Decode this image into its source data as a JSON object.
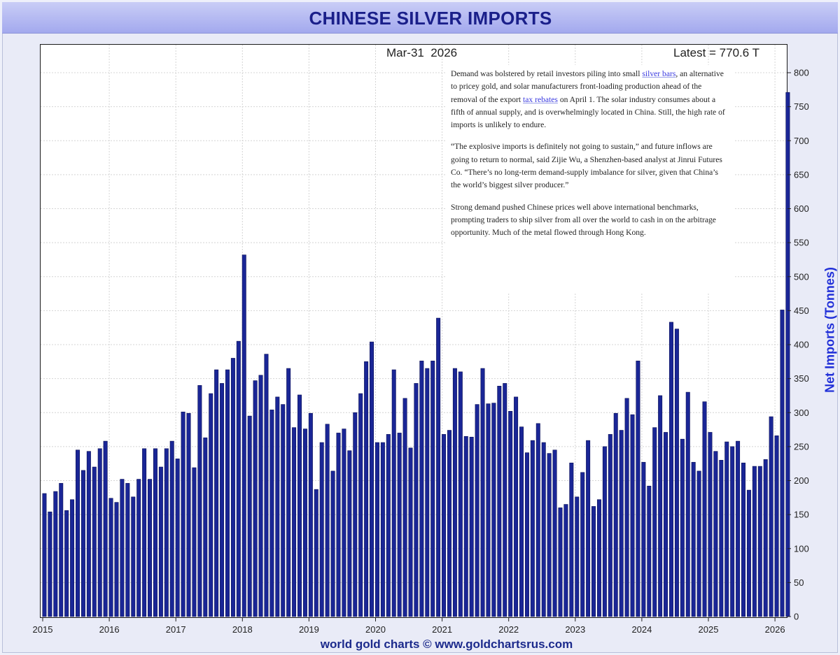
{
  "title": "CHINESE SILVER IMPORTS",
  "date_label": "Mar-31  2026",
  "latest_label": "Latest = 770.6 T",
  "annotation": {
    "p1": {
      "t1": "Demand was bolstered by retail investors piling into small ",
      "link1": "silver bars",
      "t2": ", an alternative to pricey gold, and solar manufacturers front-loading production ahead of the removal of the export ",
      "link2": "tax rebates",
      "t3": " on April 1. The solar industry consumes about a fifth of annual supply, and is overwhelmingly located in China. Still, the high rate of imports is unlikely to endure."
    },
    "p2": "“The explosive imports is definitely not going to sustain,” and future inflows are going to return to normal, said Zijie Wu, a Shenzhen-based analyst at Jinrui Futures Co. “There’s no long-term demand-supply imbalance for silver, given that China’s the world’s biggest silver producer.”",
    "p3": "Strong demand pushed Chinese prices well above international benchmarks, prompting traders to ship silver from all over the world to cash in on the arbitrage opportunity. Much of the metal flowed through Hong Kong."
  },
  "footer": "world gold charts © www.goldchartsrus.com",
  "colors": {
    "bar": "#1a2696",
    "bar_edge": "#0a0f55",
    "grid": "#d4d4d4",
    "title_text": "#1a1f8a",
    "ylabel": "#2130d8"
  },
  "chart_data": {
    "type": "bar",
    "title": "CHINESE SILVER IMPORTS",
    "ylabel": "Net Imports (Tonnes)",
    "xlabel": "",
    "x_start": "2015-01",
    "frequency": "monthly",
    "ylim": [
      0,
      820
    ],
    "yticks": [
      0,
      50,
      100,
      150,
      200,
      250,
      300,
      350,
      400,
      450,
      500,
      550,
      600,
      650,
      700,
      750,
      800
    ],
    "xticks": [
      "2015",
      "2016",
      "2017",
      "2018",
      "2019",
      "2020",
      "2021",
      "2022",
      "2023",
      "2024",
      "2025",
      "2026"
    ],
    "grid": true,
    "y_axis_position": "right",
    "series": [
      {
        "values": [
          181,
          154,
          184,
          196,
          156,
          172,
          245,
          215,
          243,
          220,
          247,
          258,
          174,
          168,
          202,
          196,
          176,
          202,
          247,
          202,
          247,
          220,
          247,
          258,
          232,
          301,
          299,
          219,
          340,
          263,
          328,
          363,
          343,
          363,
          380,
          405,
          532,
          295,
          347,
          355,
          386,
          304,
          323,
          312,
          365,
          278,
          326,
          276,
          299,
          187,
          256,
          283,
          214,
          270,
          276,
          244,
          300,
          328,
          375,
          404,
          256,
          256,
          268,
          363,
          270,
          321,
          248,
          343,
          376,
          365,
          376,
          439,
          268,
          274,
          365,
          360,
          265,
          264,
          312,
          365,
          313,
          314,
          339,
          343,
          302,
          323,
          279,
          241,
          259,
          284,
          256,
          240,
          245,
          160,
          165,
          226,
          176,
          212,
          259,
          162,
          172,
          250,
          268,
          299,
          274,
          321,
          297,
          376,
          227,
          192,
          278,
          325,
          271,
          433,
          423,
          261,
          330,
          227,
          214,
          316,
          271,
          243,
          230,
          257,
          250,
          258,
          226,
          186,
          221,
          221,
          231,
          294,
          266,
          451,
          771
        ]
      }
    ]
  }
}
